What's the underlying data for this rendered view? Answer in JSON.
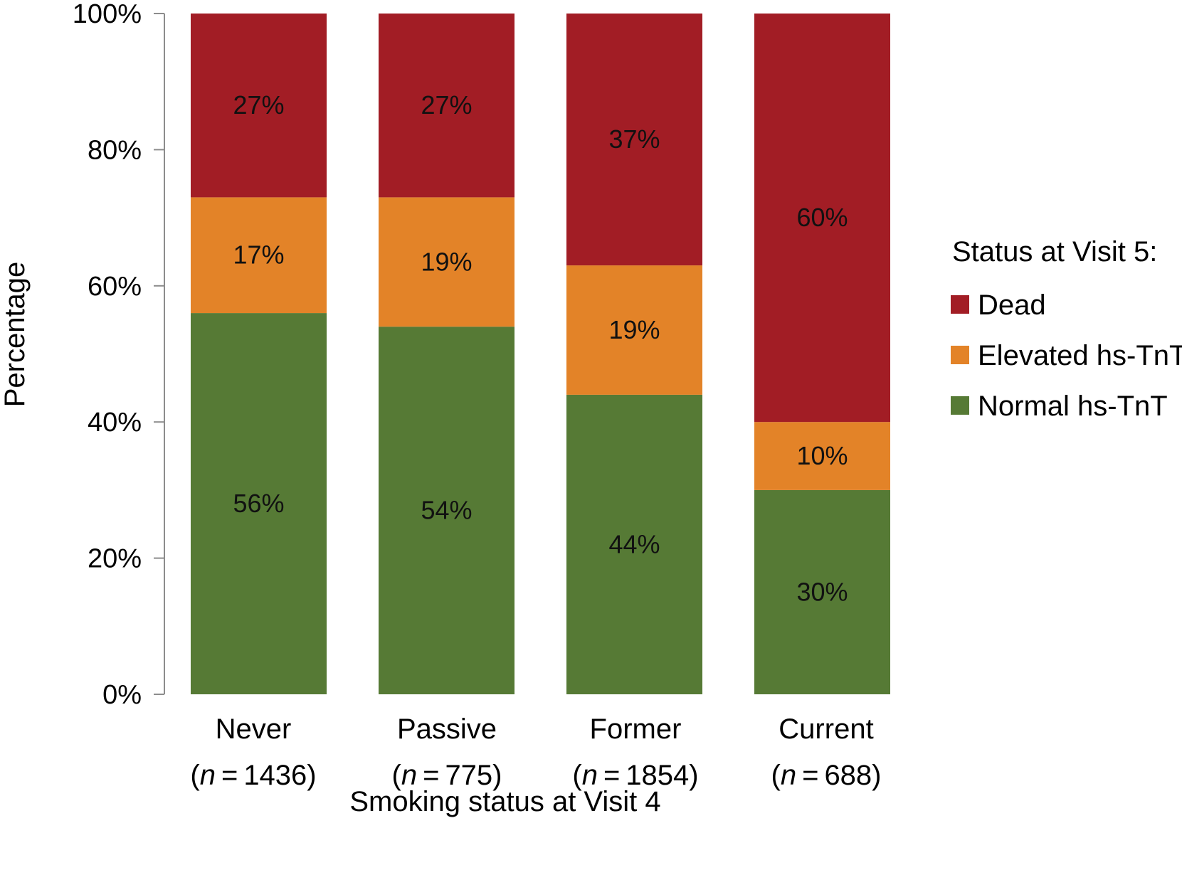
{
  "chart_data": {
    "type": "bar",
    "stacked": true,
    "title": "",
    "xlabel": "Smoking status at Visit 4",
    "ylabel": "Percentage",
    "ylim": [
      0,
      100
    ],
    "y_ticks": [
      "0%",
      "20%",
      "40%",
      "60%",
      "80%",
      "100%"
    ],
    "y_tick_values": [
      0,
      20,
      40,
      60,
      80,
      100
    ],
    "categories": [
      "Never",
      "Passive",
      "Former",
      "Current"
    ],
    "category_sublabels": [
      "(n = 1436)",
      "(n = 775)",
      "(n = 1854)",
      "(n = 688)"
    ],
    "category_n": [
      "1436",
      "775",
      "1854",
      "688"
    ],
    "legend": {
      "title": "Status at Visit 5:",
      "position": "right",
      "order": [
        "Dead",
        "Elevated hs-TnT",
        "Normal hs-TnT"
      ]
    },
    "series": [
      {
        "name": "Normal hs-TnT",
        "color": "#567a35",
        "values": [
          56,
          54,
          44,
          30
        ],
        "labels": [
          "56%",
          "54%",
          "44%",
          "30%"
        ]
      },
      {
        "name": "Elevated hs-TnT",
        "color": "#e38328",
        "values": [
          17,
          19,
          19,
          10
        ],
        "labels": [
          "17%",
          "19%",
          "19%",
          "10%"
        ]
      },
      {
        "name": "Dead",
        "color": "#a21d25",
        "values": [
          27,
          27,
          37,
          60
        ],
        "labels": [
          "27%",
          "27%",
          "37%",
          "60%"
        ]
      }
    ]
  }
}
